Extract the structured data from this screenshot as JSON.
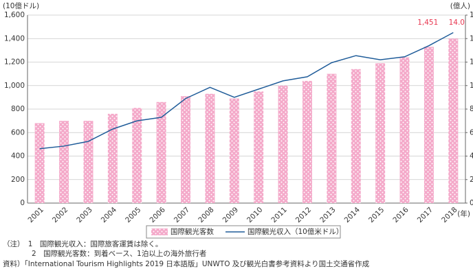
{
  "chart_data": {
    "type": "combo",
    "y_unit_label": "(10億ドル)",
    "y2_unit_label": "(億人)",
    "x_unit_label": "(年)",
    "categories": [
      "2001",
      "2002",
      "2003",
      "2004",
      "2005",
      "2006",
      "2007",
      "2008",
      "2009",
      "2010",
      "2011",
      "2012",
      "2013",
      "2014",
      "2015",
      "2016",
      "2017",
      "2018"
    ],
    "series": [
      {
        "name": "国際観光客数",
        "type": "bar",
        "axis": "y2",
        "color": "#f4a9c9",
        "values": [
          6.8,
          7.0,
          7.0,
          7.6,
          8.1,
          8.6,
          9.1,
          9.3,
          8.9,
          9.5,
          10.0,
          10.4,
          11.0,
          11.4,
          11.9,
          12.4,
          13.3,
          14.0
        ],
        "value_labels": [
          null,
          null,
          null,
          null,
          null,
          null,
          null,
          null,
          null,
          null,
          null,
          null,
          null,
          null,
          null,
          null,
          null,
          "14.0"
        ]
      },
      {
        "name": "国際観光収入（10億米ドル）",
        "type": "line",
        "axis": "y",
        "color": "#1f5c99",
        "values": [
          463,
          485,
          525,
          630,
          700,
          730,
          890,
          985,
          900,
          970,
          1040,
          1075,
          1195,
          1255,
          1220,
          1245,
          1340,
          1451
        ],
        "value_labels": [
          null,
          null,
          null,
          null,
          null,
          null,
          null,
          null,
          null,
          null,
          null,
          null,
          null,
          null,
          null,
          null,
          null,
          "1,451"
        ]
      }
    ],
    "ylim": [
      0,
      1600
    ],
    "yticks": [
      0,
      200,
      400,
      600,
      800,
      {
        "value": 1000,
        "label": "1,000"
      },
      {
        "value": 1200,
        "label": "1,200"
      },
      {
        "value": 1400,
        "label": "1,400"
      },
      {
        "value": 1600,
        "label": "1,600"
      }
    ],
    "y2lim": [
      0,
      16
    ],
    "y2ticks": [
      0,
      2,
      4,
      6,
      8,
      10,
      12,
      14,
      16
    ],
    "grid": true,
    "value_label_color": "#e8364f",
    "notes": [
      "（注）　1　国際観光収入：国際旅客運賃は除く。",
      "　　　　2　国際観光客数：到着ベース、1泊以上の海外旅行者",
      "資料）「International Tourism Highlights 2019 日本語版」UNWTO 及び観光白書参考資料より国土交通省作成"
    ]
  }
}
